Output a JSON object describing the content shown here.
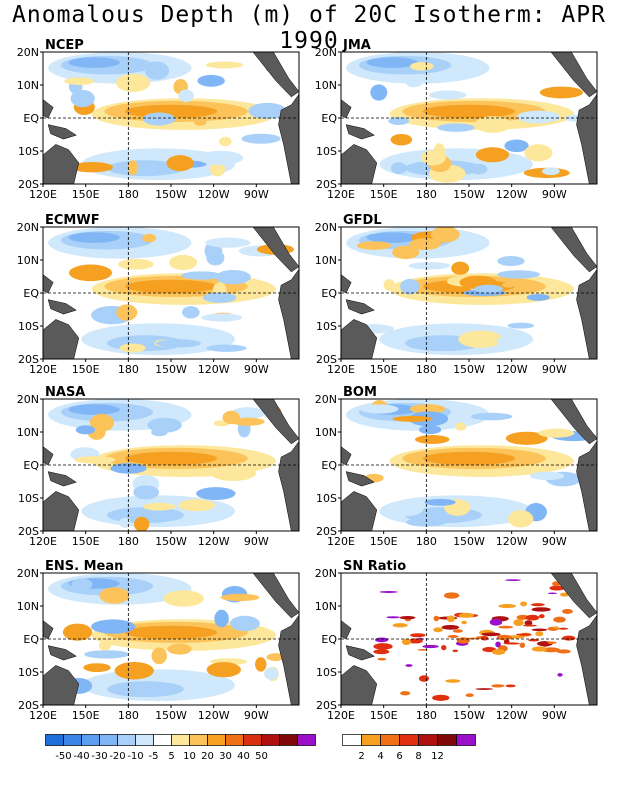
{
  "title": "Anomalous Depth (m) of 20C Isotherm: APR 1990",
  "axes": {
    "x_ticks": [
      "120E",
      "150E",
      "180",
      "150W",
      "120W",
      "90W"
    ],
    "y_ticks": [
      "20N",
      "10N",
      "EQ",
      "10S",
      "20S"
    ]
  },
  "panels": [
    {
      "name": "NCEP"
    },
    {
      "name": "JMA"
    },
    {
      "name": "ECMWF"
    },
    {
      "name": "GFDL"
    },
    {
      "name": "NASA"
    },
    {
      "name": "BOM"
    },
    {
      "name": "ENS. Mean"
    },
    {
      "name": "SN Ratio"
    }
  ],
  "colorbar_anomaly": {
    "labels": [
      "-50",
      "-40",
      "-30",
      "-20",
      "-10",
      "-5",
      "5",
      "10",
      "20",
      "30",
      "40",
      "50"
    ],
    "colors": [
      "#1e6fd8",
      "#3a86e6",
      "#5c9eef",
      "#80b6f5",
      "#a8d0f8",
      "#cfe8fb",
      "#ffffff",
      "#fde79a",
      "#fbc35a",
      "#f5a020",
      "#f07018",
      "#d83010",
      "#b01010",
      "#800808",
      "#9a10c8"
    ]
  },
  "colorbar_sn": {
    "labels": [
      "2",
      "4",
      "6",
      "8",
      "12"
    ],
    "colors": [
      "#ffffff",
      "#f5a020",
      "#f07018",
      "#e03010",
      "#b01010",
      "#800808",
      "#9a10c8"
    ]
  }
}
